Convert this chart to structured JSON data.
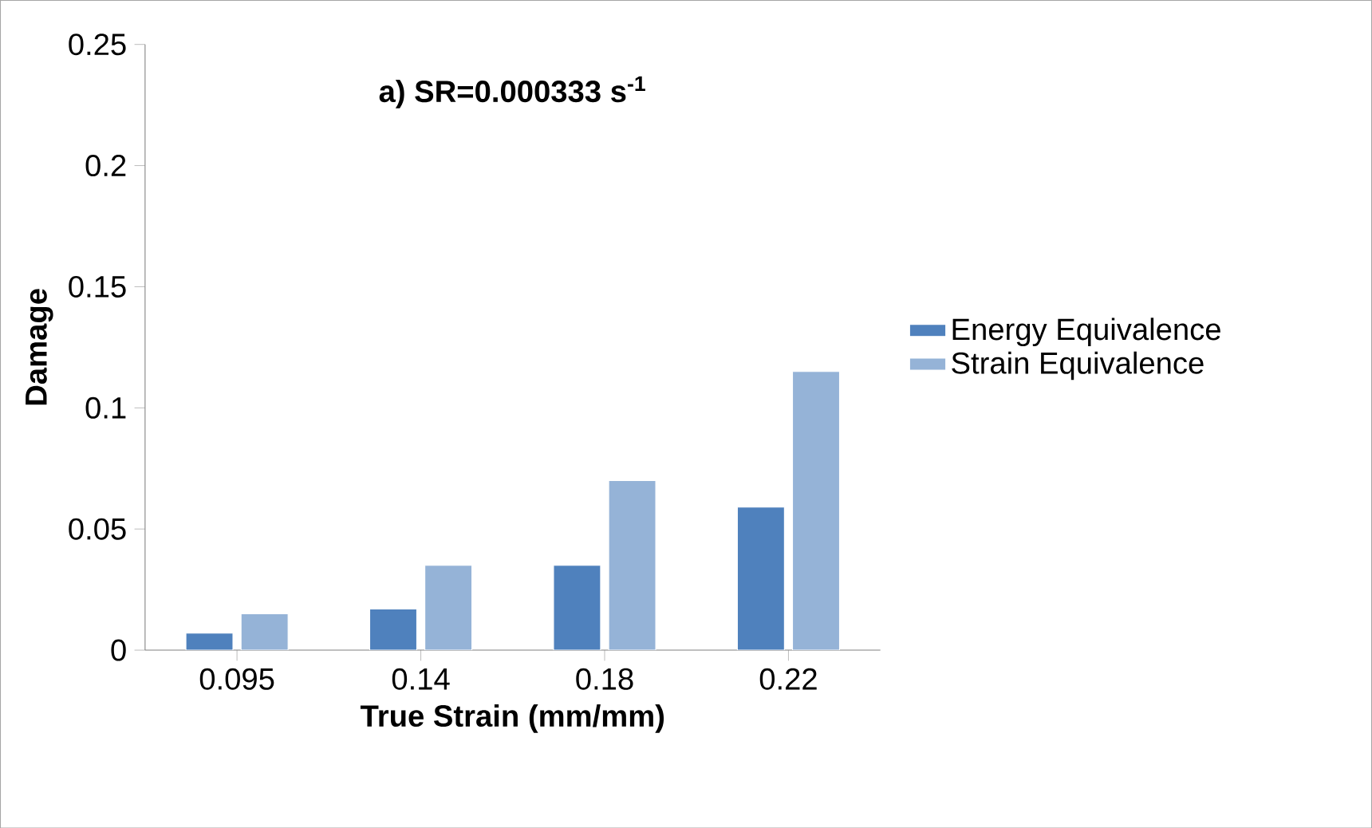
{
  "chart_data": {
    "type": "bar",
    "title": "a) SR=0.000333 s$^{-1}$",
    "xlabel": "True Strain (mm/mm)",
    "ylabel": "Damage",
    "categories": [
      "0.095",
      "0.14",
      "0.18",
      "0.22"
    ],
    "series": [
      {
        "name": "Energy Equivalence",
        "color": "#4f81bd",
        "values": [
          0.007,
          0.017,
          0.035,
          0.059
        ]
      },
      {
        "name": "Strain Equivalence",
        "color": "#95b3d7",
        "values": [
          0.015,
          0.035,
          0.07,
          0.115
        ]
      }
    ],
    "ylim": [
      0,
      0.25
    ],
    "yticks": [
      0,
      0.05,
      0.1,
      0.15,
      0.2,
      0.25
    ],
    "legend": "right"
  }
}
